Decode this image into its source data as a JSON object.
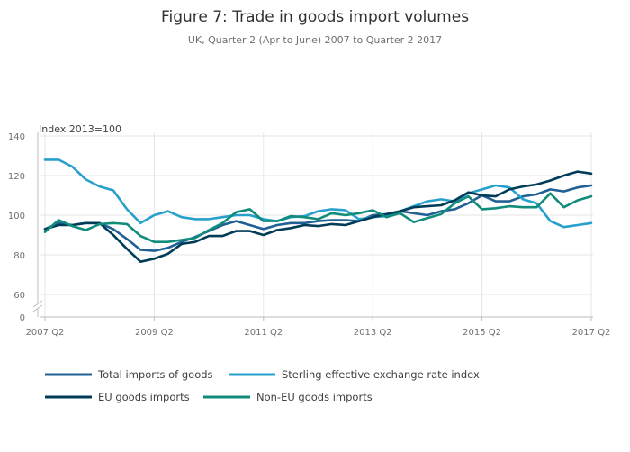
{
  "chart_data": {
    "type": "line",
    "title": "Figure 7: Trade in goods import volumes",
    "subtitle": "UK, Quarter 2 (Apr to June) 2007 to Quarter 2 2017",
    "ylabel": "Index 2013=100",
    "xlabel": "",
    "ylim": [
      60,
      140
    ],
    "y_ticks": [
      140,
      120,
      100,
      80,
      60
    ],
    "y_zero_label": "0",
    "axis_break": true,
    "x_tick_labels": [
      "2007 Q2",
      "2009 Q2",
      "2011 Q2",
      "2013 Q2",
      "2015 Q2",
      "2017 Q2"
    ],
    "x_tick_index": [
      0,
      8,
      16,
      24,
      32,
      40
    ],
    "quarters": [
      "2007 Q2",
      "2007 Q3",
      "2007 Q4",
      "2008 Q1",
      "2008 Q2",
      "2008 Q3",
      "2008 Q4",
      "2009 Q1",
      "2009 Q2",
      "2009 Q3",
      "2009 Q4",
      "2010 Q1",
      "2010 Q2",
      "2010 Q3",
      "2010 Q4",
      "2011 Q1",
      "2011 Q2",
      "2011 Q3",
      "2011 Q4",
      "2012 Q1",
      "2012 Q2",
      "2012 Q3",
      "2012 Q4",
      "2013 Q1",
      "2013 Q2",
      "2013 Q3",
      "2013 Q4",
      "2014 Q1",
      "2014 Q2",
      "2014 Q3",
      "2014 Q4",
      "2015 Q1",
      "2015 Q2",
      "2015 Q3",
      "2015 Q4",
      "2016 Q1",
      "2016 Q2",
      "2016 Q3",
      "2016 Q4",
      "2017 Q1",
      "2017 Q2"
    ],
    "grid": true,
    "legend_position": "bottom",
    "series": [
      {
        "name": "Total imports of goods",
        "color": "#206095",
        "values": [
          93,
          96,
          95,
          96,
          96,
          93,
          88,
          82.5,
          82,
          83.5,
          86.5,
          89,
          92,
          95,
          97,
          95,
          93,
          95,
          96,
          96,
          97,
          97.5,
          97.5,
          97,
          100,
          100.5,
          102,
          101,
          100,
          102,
          103,
          106,
          110,
          107,
          107,
          109.5,
          110.5,
          113,
          112,
          114,
          115
        ]
      },
      {
        "name": "Sterling effective exchange rate index",
        "color": "#27a0cc",
        "values": [
          128,
          128,
          124.5,
          118,
          114.5,
          112.5,
          103,
          96,
          100,
          102,
          99,
          98,
          98,
          99,
          100,
          100,
          98,
          97,
          99,
          99.5,
          102,
          103,
          102.5,
          98,
          99,
          99.5,
          102,
          104.5,
          107,
          108,
          107,
          111,
          113,
          115,
          114,
          108,
          106,
          97,
          94,
          95,
          96
        ]
      },
      {
        "name": "EU goods imports",
        "color": "#003c57",
        "values": [
          93,
          95,
          95,
          96,
          96,
          90,
          83,
          76.5,
          78,
          80.5,
          85.5,
          86.5,
          89.5,
          89.5,
          92,
          92,
          90,
          92.5,
          93.5,
          95,
          94.5,
          95.5,
          95,
          97,
          99,
          100.5,
          102,
          104,
          104.5,
          105,
          107.5,
          111.5,
          110,
          109.5,
          113,
          114.5,
          115.5,
          117.5,
          120,
          122,
          121
        ]
      },
      {
        "name": "Non-EU goods imports",
        "color": "#118c7b",
        "values": [
          91.5,
          97.5,
          94.5,
          92.5,
          95.5,
          96,
          95.5,
          89.5,
          86.5,
          86.5,
          87.5,
          88.5,
          92.5,
          96,
          101.5,
          103,
          97,
          97,
          99.5,
          99,
          98,
          101,
          100,
          101,
          102.5,
          99,
          101,
          96.5,
          98.5,
          100.5,
          106,
          109.5,
          103,
          103.5,
          104.5,
          104,
          104,
          111,
          104,
          107.5,
          109.5
        ]
      }
    ]
  }
}
